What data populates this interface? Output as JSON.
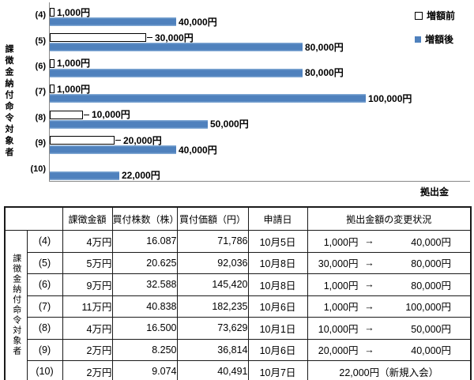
{
  "chart_data": {
    "type": "bar",
    "orientation": "horizontal",
    "title": "",
    "xlabel": "拠出金",
    "ylabel": "課徴金納付命令対象者",
    "categories": [
      "(4)",
      "(5)",
      "(6)",
      "(7)",
      "(8)",
      "(9)",
      "(10)"
    ],
    "series": [
      {
        "name": "増額前",
        "color": "#ffffff",
        "values": [
          1000,
          30000,
          1000,
          1000,
          10000,
          20000,
          null
        ],
        "labels": [
          "1,000円",
          "30,000円",
          "1,000円",
          "1,000円",
          "10,000円",
          "20,000円",
          null
        ]
      },
      {
        "name": "増額後",
        "color": "#4f81bd",
        "values": [
          40000,
          80000,
          80000,
          100000,
          50000,
          40000,
          22000
        ],
        "labels": [
          "40,000円",
          "80,000円",
          "80,000円",
          "100,000円",
          "50,000円",
          "40,000円",
          "22,000円"
        ]
      }
    ],
    "xlim": [
      0,
      133000
    ],
    "grid": false,
    "legend_position": "top-right",
    "unit": "円"
  },
  "table": {
    "group_label": "課徴金納付命令対象者",
    "headers": [
      "課徴金額",
      "買付株数（株）",
      "買付価額（円）",
      "申請日",
      "拠出金額の変更状況"
    ],
    "arrow": "→",
    "rows": [
      {
        "no": "(4)",
        "amount": "4万円",
        "shares": "16.087",
        "value": "71,786",
        "date": "10月5日",
        "before": "1,000円",
        "after": "40,000円"
      },
      {
        "no": "(5)",
        "amount": "5万円",
        "shares": "20.625",
        "value": "92,036",
        "date": "10月8日",
        "before": "30,000円",
        "after": "80,000円"
      },
      {
        "no": "(6)",
        "amount": "9万円",
        "shares": "32.588",
        "value": "145,420",
        "date": "10月8日",
        "before": "1,000円",
        "after": "80,000円"
      },
      {
        "no": "(7)",
        "amount": "11万円",
        "shares": "40.838",
        "value": "182,235",
        "date": "10月6日",
        "before": "1,000円",
        "after": "100,000円"
      },
      {
        "no": "(8)",
        "amount": "4万円",
        "shares": "16.500",
        "value": "73,629",
        "date": "10月1日",
        "before": "10,000円",
        "after": "50,000円"
      },
      {
        "no": "(9)",
        "amount": "2万円",
        "shares": "8.250",
        "value": "36,814",
        "date": "10月6日",
        "before": "20,000円",
        "after": "40,000円"
      },
      {
        "no": "(10)",
        "amount": "2万円",
        "shares": "9.074",
        "value": "40,491",
        "date": "10月7日",
        "change_text": "22,000円（新規入会）"
      }
    ]
  },
  "colors": {
    "bar_after": "#4f81bd",
    "bar_before": "#ffffff",
    "axis": "#888888",
    "table_border": "#1a1a1a",
    "text": "#000000"
  }
}
